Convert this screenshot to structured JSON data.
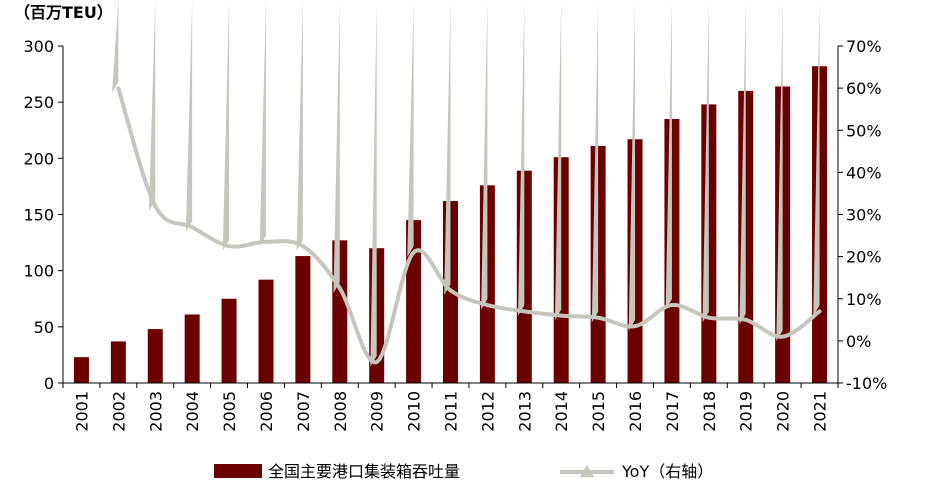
{
  "chart_data": {
    "type": "bar+line",
    "unit_label": "（百万TEU）",
    "categories": [
      "2001",
      "2002",
      "2003",
      "2004",
      "2005",
      "2006",
      "2007",
      "2008",
      "2009",
      "2010",
      "2011",
      "2012",
      "2013",
      "2014",
      "2015",
      "2016",
      "2017",
      "2018",
      "2019",
      "2020",
      "2021"
    ],
    "series": [
      {
        "name": "全国主要港口集装箱吞吐量",
        "type": "bar",
        "axis": "left",
        "color": "#6b0000",
        "values": [
          23,
          37,
          48,
          61,
          75,
          92,
          113,
          127,
          120,
          145,
          162,
          176,
          189,
          201,
          211,
          217,
          235,
          248,
          260,
          264,
          282
        ]
      },
      {
        "name": "YoY（右轴）",
        "type": "line",
        "axis": "right",
        "color": "#c6c6bd",
        "values": [
          null,
          60,
          32,
          27,
          22.5,
          23.5,
          22.5,
          12.5,
          -5,
          21,
          12,
          8.5,
          7,
          6,
          5.5,
          3.5,
          8.5,
          5.5,
          5,
          1,
          7
        ]
      }
    ],
    "y_left": {
      "min": 0,
      "max": 300,
      "ticks": [
        0,
        50,
        100,
        150,
        200,
        250,
        300
      ],
      "tick_labels": [
        "0",
        "50",
        "100",
        "150",
        "200",
        "250",
        "300"
      ]
    },
    "y_right": {
      "min": -10,
      "max": 70,
      "ticks": [
        -10,
        0,
        10,
        20,
        30,
        40,
        50,
        60,
        70
      ],
      "tick_labels": [
        "-10%",
        "0%",
        "10%",
        "20%",
        "30%",
        "40%",
        "50%",
        "60%",
        "70%"
      ]
    },
    "grid": false,
    "legend_position": "bottom"
  }
}
